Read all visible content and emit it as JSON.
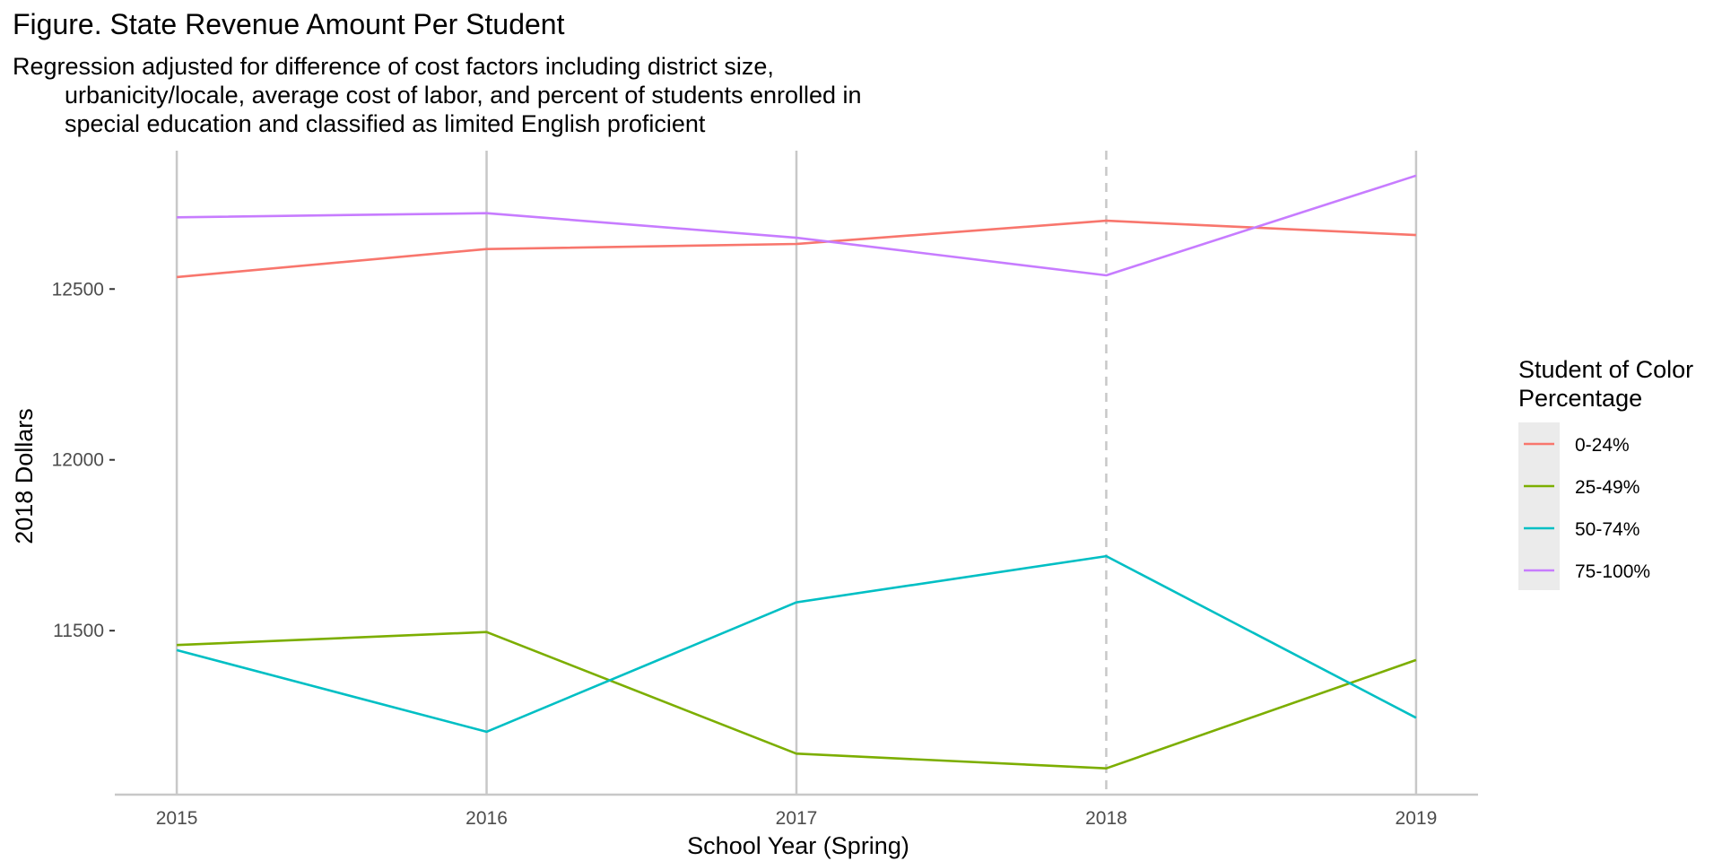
{
  "chart_data": {
    "type": "line",
    "title": "Figure. State Revenue Amount Per Student",
    "subtitle": [
      "Regression adjusted for difference of cost factors including district size,",
      "urbanicity/locale, average cost of labor, and percent of students enrolled in",
      "special education and classified as limited English proficient"
    ],
    "xlabel": "School Year (Spring)",
    "ylabel": "2018 Dollars",
    "x": [
      "2015",
      "2016",
      "2017",
      "2018",
      "2019"
    ],
    "y_ticks": [
      "11500",
      "12000",
      "12500"
    ],
    "xlim": [
      2014.8,
      2019.2
    ],
    "ylim": [
      11020,
      12905
    ],
    "grid": "vertical only",
    "highlight_x": "2018",
    "legend": {
      "title": [
        "Student of Color",
        "Percentage"
      ],
      "position": "right"
    },
    "series": [
      {
        "name": "0-24%",
        "color": "#F8766D",
        "values": [
          12535,
          12617,
          12632,
          12700,
          12658
        ]
      },
      {
        "name": "25-49%",
        "color": "#7CAE00",
        "values": [
          11458,
          11496,
          11140,
          11097,
          11414
        ]
      },
      {
        "name": "50-74%",
        "color": "#00BFC4",
        "values": [
          11443,
          11204,
          11583,
          11718,
          11245
        ]
      },
      {
        "name": "75-100%",
        "color": "#C77CFF",
        "values": [
          12710,
          12722,
          12650,
          12540,
          12832
        ]
      }
    ]
  }
}
